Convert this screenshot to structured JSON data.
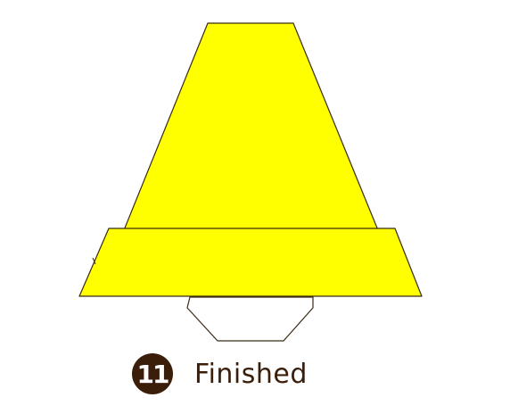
{
  "step": {
    "number": "11",
    "caption": "Finished"
  },
  "colors": {
    "paper_fill": "#ffff00",
    "outline": "#3a2a14",
    "badge": "#3a1e0a",
    "hexagon_fill": "#ffffff"
  }
}
